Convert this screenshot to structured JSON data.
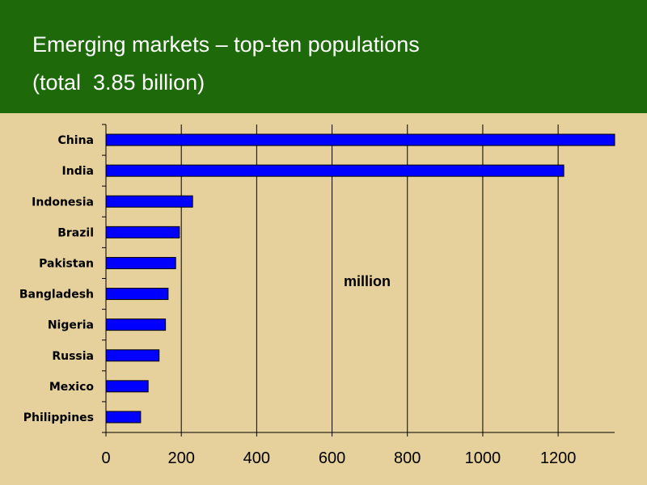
{
  "header": {
    "title": "Emerging markets – top-ten populations",
    "subtitle": "(total  3.85 billion)"
  },
  "colors": {
    "header_bg": "#1e6a0a",
    "page_bg": "#e6d09b",
    "bar_fill": "#0000ff",
    "bar_stroke": "#000000",
    "grid": "#000000"
  },
  "chart_data": {
    "type": "bar",
    "orientation": "horizontal",
    "title": "Emerging markets – top-ten populations",
    "subtitle": "(total  3.85 billion)",
    "categories": [
      "China",
      "India",
      "Indonesia",
      "Brazil",
      "Pakistan",
      "Bangladesh",
      "Nigeria",
      "Russia",
      "Mexico",
      "Philippines"
    ],
    "values": [
      1350,
      1215,
      230,
      195,
      185,
      165,
      158,
      141,
      112,
      92
    ],
    "xlabel": "",
    "ylabel": "",
    "annotation": "million",
    "xticks": [
      0,
      200,
      400,
      600,
      800,
      1000,
      1200
    ],
    "xlim": [
      0,
      1350
    ],
    "grid": "vertical major gridlines",
    "legend": "none"
  }
}
